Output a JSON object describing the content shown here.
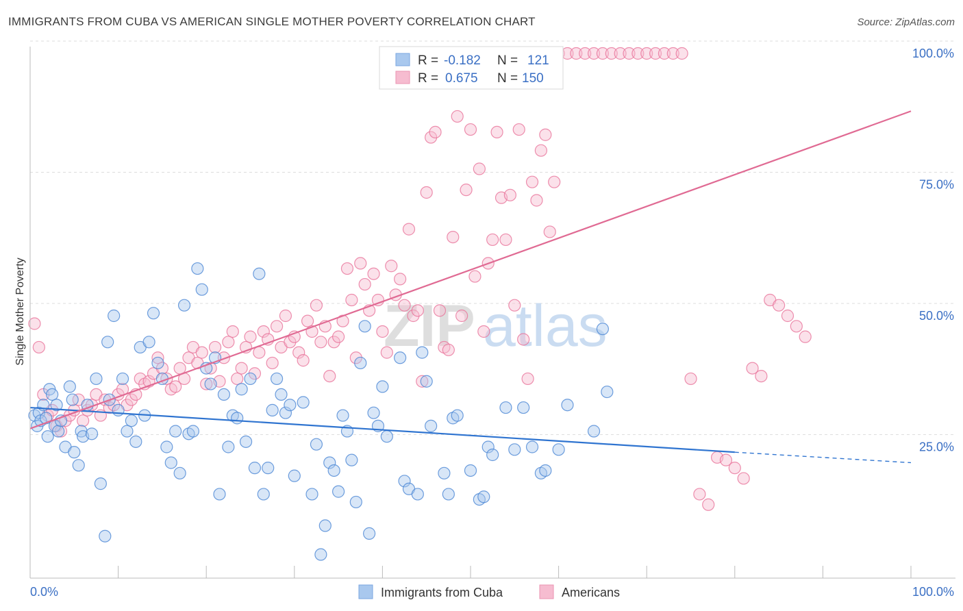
{
  "header": {
    "title": "IMMIGRANTS FROM CUBA VS AMERICAN SINGLE MOTHER POVERTY CORRELATION CHART",
    "source": "Source: ZipAtlas.com"
  },
  "watermark": {
    "zip": "ZIP",
    "atlas": "atlas"
  },
  "legend_top": {
    "r_label": "R =",
    "n_label": "N =",
    "rows": [
      {
        "r": "-0.182",
        "n": "121",
        "color": "#8fb8ea"
      },
      {
        "r": "0.675",
        "n": "150",
        "color": "#f4a8c0"
      }
    ]
  },
  "bottom_legend": [
    {
      "label": "Immigrants from Cuba",
      "color": "#8fb8ea"
    },
    {
      "label": "Americans",
      "color": "#f4a8c0"
    }
  ],
  "chart_data": {
    "type": "scatter",
    "ylabel": "Single Mother Poverty",
    "x_tick_labels": [
      "0.0%",
      "100.0%"
    ],
    "y_tick_labels": [
      "25.0%",
      "50.0%",
      "75.0%",
      "100.0%"
    ],
    "xlim": [
      0,
      100
    ],
    "ylim": [
      0,
      100
    ],
    "colors": {
      "cuba": "#4a86d4",
      "cuba_fill": "#a9c8ee",
      "americans": "#e8739a",
      "americans_fill": "#f6bcd0"
    },
    "series": [
      {
        "name": "Immigrants from Cuba",
        "r": -0.182,
        "n": 121,
        "trend": {
          "x0": 0,
          "y0": 32.5,
          "x1": 80,
          "y1": 24,
          "dash_to_x": 100,
          "dash_to_y": 22
        },
        "points": [
          [
            0.5,
            31
          ],
          [
            0.8,
            29
          ],
          [
            1,
            31.5
          ],
          [
            1.2,
            30
          ],
          [
            1.5,
            33
          ],
          [
            1.8,
            30.5
          ],
          [
            2,
            27
          ],
          [
            2.2,
            36
          ],
          [
            2.5,
            35
          ],
          [
            2.8,
            29
          ],
          [
            3,
            33
          ],
          [
            3.2,
            28
          ],
          [
            3.5,
            30
          ],
          [
            4,
            25
          ],
          [
            4.5,
            36.5
          ],
          [
            4.8,
            34
          ],
          [
            5,
            24
          ],
          [
            5.5,
            21.5
          ],
          [
            5.8,
            28
          ],
          [
            6,
            27
          ],
          [
            6.5,
            33
          ],
          [
            7,
            27.5
          ],
          [
            7.5,
            38
          ],
          [
            8,
            18
          ],
          [
            8.5,
            8
          ],
          [
            8.8,
            45
          ],
          [
            9,
            34
          ],
          [
            9.5,
            50
          ],
          [
            10,
            32
          ],
          [
            10.5,
            38
          ],
          [
            11,
            28
          ],
          [
            11.5,
            30
          ],
          [
            12,
            26
          ],
          [
            12.5,
            44
          ],
          [
            13,
            31
          ],
          [
            13.5,
            45
          ],
          [
            14,
            50.5
          ],
          [
            14.5,
            41
          ],
          [
            15,
            38
          ],
          [
            15.5,
            25
          ],
          [
            16,
            22
          ],
          [
            16.5,
            28
          ],
          [
            17,
            20
          ],
          [
            17.5,
            52
          ],
          [
            18,
            27.5
          ],
          [
            18.5,
            28
          ],
          [
            19,
            59
          ],
          [
            19.5,
            55
          ],
          [
            20,
            40
          ],
          [
            20.5,
            37
          ],
          [
            21,
            42
          ],
          [
            21.5,
            16
          ],
          [
            22,
            35
          ],
          [
            22.5,
            25
          ],
          [
            23,
            31
          ],
          [
            23.5,
            30.5
          ],
          [
            24,
            36
          ],
          [
            24.5,
            26
          ],
          [
            25,
            38
          ],
          [
            25.5,
            21
          ],
          [
            26,
            58
          ],
          [
            26.5,
            16
          ],
          [
            27,
            21
          ],
          [
            27.5,
            32
          ],
          [
            28,
            38
          ],
          [
            28.5,
            35
          ],
          [
            29,
            31.5
          ],
          [
            29.5,
            33
          ],
          [
            30,
            19.5
          ],
          [
            31,
            33.5
          ],
          [
            32,
            16
          ],
          [
            32.5,
            25.5
          ],
          [
            33,
            4.5
          ],
          [
            33.5,
            10
          ],
          [
            34,
            22
          ],
          [
            34.5,
            20.5
          ],
          [
            35,
            16.5
          ],
          [
            35.5,
            31
          ],
          [
            36,
            28
          ],
          [
            36.5,
            22.5
          ],
          [
            37,
            14.5
          ],
          [
            37.5,
            41
          ],
          [
            38,
            48
          ],
          [
            38.5,
            8.5
          ],
          [
            39,
            31.5
          ],
          [
            39.5,
            29
          ],
          [
            40,
            36.5
          ],
          [
            40.5,
            27
          ],
          [
            42,
            42
          ],
          [
            42.5,
            18.5
          ],
          [
            43,
            17
          ],
          [
            44,
            16
          ],
          [
            44.5,
            43
          ],
          [
            45,
            37.5
          ],
          [
            45.5,
            29
          ],
          [
            47,
            20
          ],
          [
            47.5,
            16
          ],
          [
            48,
            30.5
          ],
          [
            48.5,
            31
          ],
          [
            50,
            20.5
          ],
          [
            51,
            15
          ],
          [
            51.5,
            15.5
          ],
          [
            52,
            25
          ],
          [
            52.5,
            23.5
          ],
          [
            54,
            32.5
          ],
          [
            55,
            24.5
          ],
          [
            56,
            32.5
          ],
          [
            57,
            25
          ],
          [
            58,
            20
          ],
          [
            58.5,
            20.5
          ],
          [
            60,
            24.5
          ],
          [
            61,
            33
          ],
          [
            64,
            28
          ],
          [
            65,
            47.5
          ],
          [
            65.5,
            35.5
          ]
        ]
      },
      {
        "name": "Americans",
        "r": 0.675,
        "n": 150,
        "trend": {
          "x0": 0,
          "y0": 28.5,
          "x1": 100,
          "y1": 89
        },
        "points": [
          [
            0.5,
            48.5
          ],
          [
            1,
            44
          ],
          [
            1.5,
            35
          ],
          [
            2,
            31
          ],
          [
            2.5,
            32
          ],
          [
            3,
            29
          ],
          [
            3.5,
            28
          ],
          [
            4,
            30
          ],
          [
            4.5,
            31
          ],
          [
            5,
            32
          ],
          [
            5.5,
            34
          ],
          [
            6,
            30
          ],
          [
            6.5,
            32
          ],
          [
            7,
            33
          ],
          [
            7.5,
            35
          ],
          [
            8,
            31
          ],
          [
            8.5,
            34
          ],
          [
            9,
            32.5
          ],
          [
            9.5,
            33
          ],
          [
            10,
            35
          ],
          [
            10.5,
            36
          ],
          [
            11,
            33
          ],
          [
            11.5,
            34
          ],
          [
            12,
            35
          ],
          [
            12.5,
            38
          ],
          [
            13,
            37
          ],
          [
            13.5,
            37.5
          ],
          [
            14,
            39
          ],
          [
            14.5,
            42
          ],
          [
            15,
            40
          ],
          [
            15.5,
            38
          ],
          [
            16,
            36
          ],
          [
            16.5,
            36.5
          ],
          [
            17,
            40
          ],
          [
            17.5,
            38
          ],
          [
            18,
            42
          ],
          [
            18.5,
            44
          ],
          [
            19,
            41
          ],
          [
            19.5,
            43
          ],
          [
            20,
            37
          ],
          [
            20.5,
            40
          ],
          [
            21,
            44
          ],
          [
            21.5,
            37.5
          ],
          [
            22,
            42
          ],
          [
            22.5,
            45
          ],
          [
            23,
            47
          ],
          [
            23.5,
            38
          ],
          [
            24,
            40
          ],
          [
            24.5,
            44
          ],
          [
            25,
            46
          ],
          [
            25.5,
            39
          ],
          [
            26,
            43
          ],
          [
            26.5,
            47
          ],
          [
            27,
            45.5
          ],
          [
            27.5,
            41
          ],
          [
            28,
            48
          ],
          [
            28.5,
            44
          ],
          [
            29,
            50
          ],
          [
            29.5,
            45
          ],
          [
            30,
            46
          ],
          [
            30.5,
            43
          ],
          [
            31,
            41.5
          ],
          [
            31.5,
            49
          ],
          [
            32,
            47
          ],
          [
            32.5,
            52
          ],
          [
            33,
            45
          ],
          [
            33.5,
            48
          ],
          [
            34,
            38.5
          ],
          [
            34.5,
            45
          ],
          [
            35,
            46
          ],
          [
            35.5,
            49
          ],
          [
            36,
            59
          ],
          [
            36.5,
            53
          ],
          [
            37,
            42
          ],
          [
            37.5,
            60
          ],
          [
            38,
            56
          ],
          [
            38.5,
            51
          ],
          [
            39,
            58
          ],
          [
            39.5,
            53
          ],
          [
            40,
            47
          ],
          [
            40.5,
            43
          ],
          [
            41,
            59.5
          ],
          [
            41.5,
            54
          ],
          [
            42,
            57
          ],
          [
            42.5,
            52
          ],
          [
            43,
            66.5
          ],
          [
            43.5,
            50
          ],
          [
            44,
            51
          ],
          [
            44.5,
            37.5
          ],
          [
            45,
            73.5
          ],
          [
            45.5,
            84
          ],
          [
            46,
            85
          ],
          [
            46.5,
            51
          ],
          [
            47,
            44
          ],
          [
            47.5,
            43.5
          ],
          [
            48,
            65
          ],
          [
            48.5,
            88
          ],
          [
            49,
            50
          ],
          [
            49.5,
            74
          ],
          [
            50,
            85.5
          ],
          [
            50.5,
            57.5
          ],
          [
            51,
            78
          ],
          [
            51.5,
            47
          ],
          [
            52,
            60
          ],
          [
            52.5,
            64.5
          ],
          [
            53,
            85
          ],
          [
            53.5,
            72.5
          ],
          [
            54,
            64.5
          ],
          [
            54.5,
            73
          ],
          [
            55,
            52
          ],
          [
            55.5,
            85.5
          ],
          [
            56,
            45.5
          ],
          [
            56.5,
            38
          ],
          [
            57,
            75.5
          ],
          [
            57.5,
            72
          ],
          [
            58,
            81.5
          ],
          [
            58.5,
            84.5
          ],
          [
            59,
            66
          ],
          [
            59.5,
            75.5
          ],
          [
            60,
            100
          ],
          [
            61,
            100
          ],
          [
            62,
            100
          ],
          [
            63,
            100
          ],
          [
            64,
            100
          ],
          [
            65,
            100
          ],
          [
            66,
            100
          ],
          [
            67,
            100
          ],
          [
            68,
            100
          ],
          [
            69,
            100
          ],
          [
            70,
            100
          ],
          [
            71,
            100
          ],
          [
            72,
            100
          ],
          [
            73,
            100
          ],
          [
            74,
            100
          ],
          [
            75,
            38
          ],
          [
            76,
            16
          ],
          [
            77,
            14
          ],
          [
            78,
            23
          ],
          [
            79,
            22.5
          ],
          [
            80,
            21
          ],
          [
            81,
            19
          ],
          [
            82,
            40
          ],
          [
            83,
            38.5
          ],
          [
            84,
            53
          ],
          [
            85,
            52
          ],
          [
            86,
            50
          ],
          [
            87,
            48
          ],
          [
            88,
            46
          ]
        ]
      }
    ]
  }
}
